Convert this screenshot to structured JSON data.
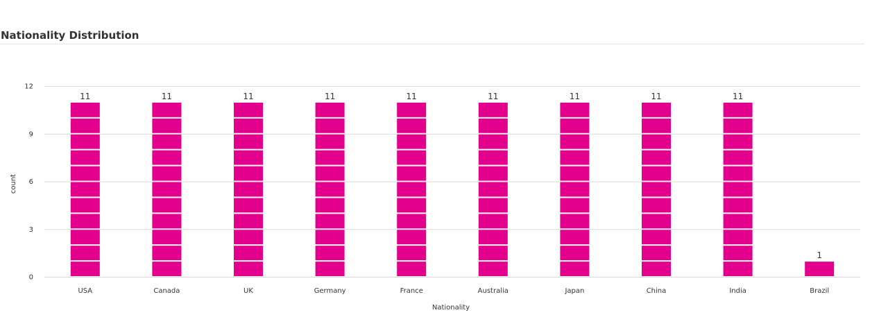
{
  "chart_data": {
    "type": "bar",
    "title": "Nationality Distribution",
    "categories": [
      "USA",
      "Canada",
      "UK",
      "Germany",
      "France",
      "Australia",
      "Japan",
      "China",
      "India",
      "Brazil"
    ],
    "values": [
      11,
      11,
      11,
      11,
      11,
      11,
      11,
      11,
      11,
      1
    ],
    "xlabel": "Nationality",
    "ylabel": "count",
    "ylim": [
      0,
      12
    ],
    "yticks": [
      0,
      3,
      6,
      9,
      12
    ],
    "grid": true,
    "stacked_unit_segments": true,
    "bar_color": "#e3008c",
    "grid_color": "#d9d9d9"
  }
}
